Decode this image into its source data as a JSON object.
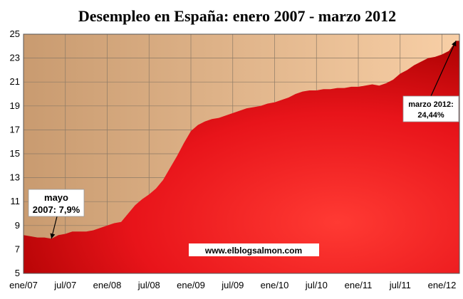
{
  "chart_data": {
    "type": "area",
    "title": "Desempleo en España:  enero 2007 - marzo 2012",
    "xlabel": "",
    "ylabel": "",
    "ylim": [
      5,
      25
    ],
    "yticks": [
      5,
      7,
      9,
      11,
      13,
      15,
      17,
      19,
      21,
      23,
      25
    ],
    "xlim": [
      0,
      62.5
    ],
    "xticks": [
      {
        "label": "ene/07",
        "x": 0
      },
      {
        "label": "jul/07",
        "x": 6
      },
      {
        "label": "ene/08",
        "x": 12
      },
      {
        "label": "jul/08",
        "x": 18
      },
      {
        "label": "ene/09",
        "x": 24
      },
      {
        "label": "jul/09",
        "x": 30
      },
      {
        "label": "ene/10",
        "x": 36
      },
      {
        "label": "jul/10",
        "x": 42
      },
      {
        "label": "ene/11",
        "x": 48
      },
      {
        "label": "jul/11",
        "x": 54
      },
      {
        "label": "ene/12",
        "x": 60
      }
    ],
    "grid": true,
    "legend": "none",
    "colors": {
      "plot_background": "#d8ac82",
      "plot_background_light": "#f5cba4",
      "area_fill": "#e8141a",
      "area_fill_light": "#ff3a33",
      "area_fill_dark": "#9e0000"
    },
    "series": [
      {
        "x": [
          0,
          1,
          2,
          3,
          4,
          5,
          6,
          7,
          8,
          9,
          10,
          11,
          12,
          13,
          14,
          15,
          16,
          17,
          18,
          19,
          20,
          21,
          22,
          23,
          24,
          25,
          26,
          27,
          28,
          29,
          30,
          31,
          32,
          33,
          34,
          35,
          36,
          37,
          38,
          39,
          40,
          41,
          42,
          43,
          44,
          45,
          46,
          47,
          48,
          49,
          50,
          51,
          52,
          53,
          54,
          55,
          56,
          57,
          58,
          59,
          60,
          61,
          62
        ],
        "values": [
          8.2,
          8.1,
          8.0,
          8.0,
          7.9,
          8.2,
          8.3,
          8.5,
          8.5,
          8.5,
          8.6,
          8.8,
          9.0,
          9.2,
          9.3,
          10.0,
          10.7,
          11.2,
          11.6,
          12.1,
          12.8,
          13.8,
          14.8,
          15.9,
          16.9,
          17.4,
          17.7,
          17.9,
          18.0,
          18.2,
          18.4,
          18.6,
          18.8,
          18.9,
          19.0,
          19.2,
          19.3,
          19.5,
          19.7,
          20.0,
          20.2,
          20.3,
          20.3,
          20.4,
          20.4,
          20.5,
          20.5,
          20.6,
          20.6,
          20.7,
          20.8,
          20.7,
          20.9,
          21.2,
          21.7,
          22.0,
          22.4,
          22.7,
          23.0,
          23.1,
          23.3,
          23.6,
          24.44
        ]
      }
    ],
    "annotations": [
      {
        "lines": [
          "mayo",
          "2007: 7,9%"
        ],
        "point": {
          "x": 4,
          "y": 7.9
        }
      },
      {
        "lines": [
          "marzo 2012:",
          "24,44%"
        ],
        "point": {
          "x": 62,
          "y": 24.44
        }
      }
    ],
    "watermark": "www.elblogsalmon.com"
  }
}
